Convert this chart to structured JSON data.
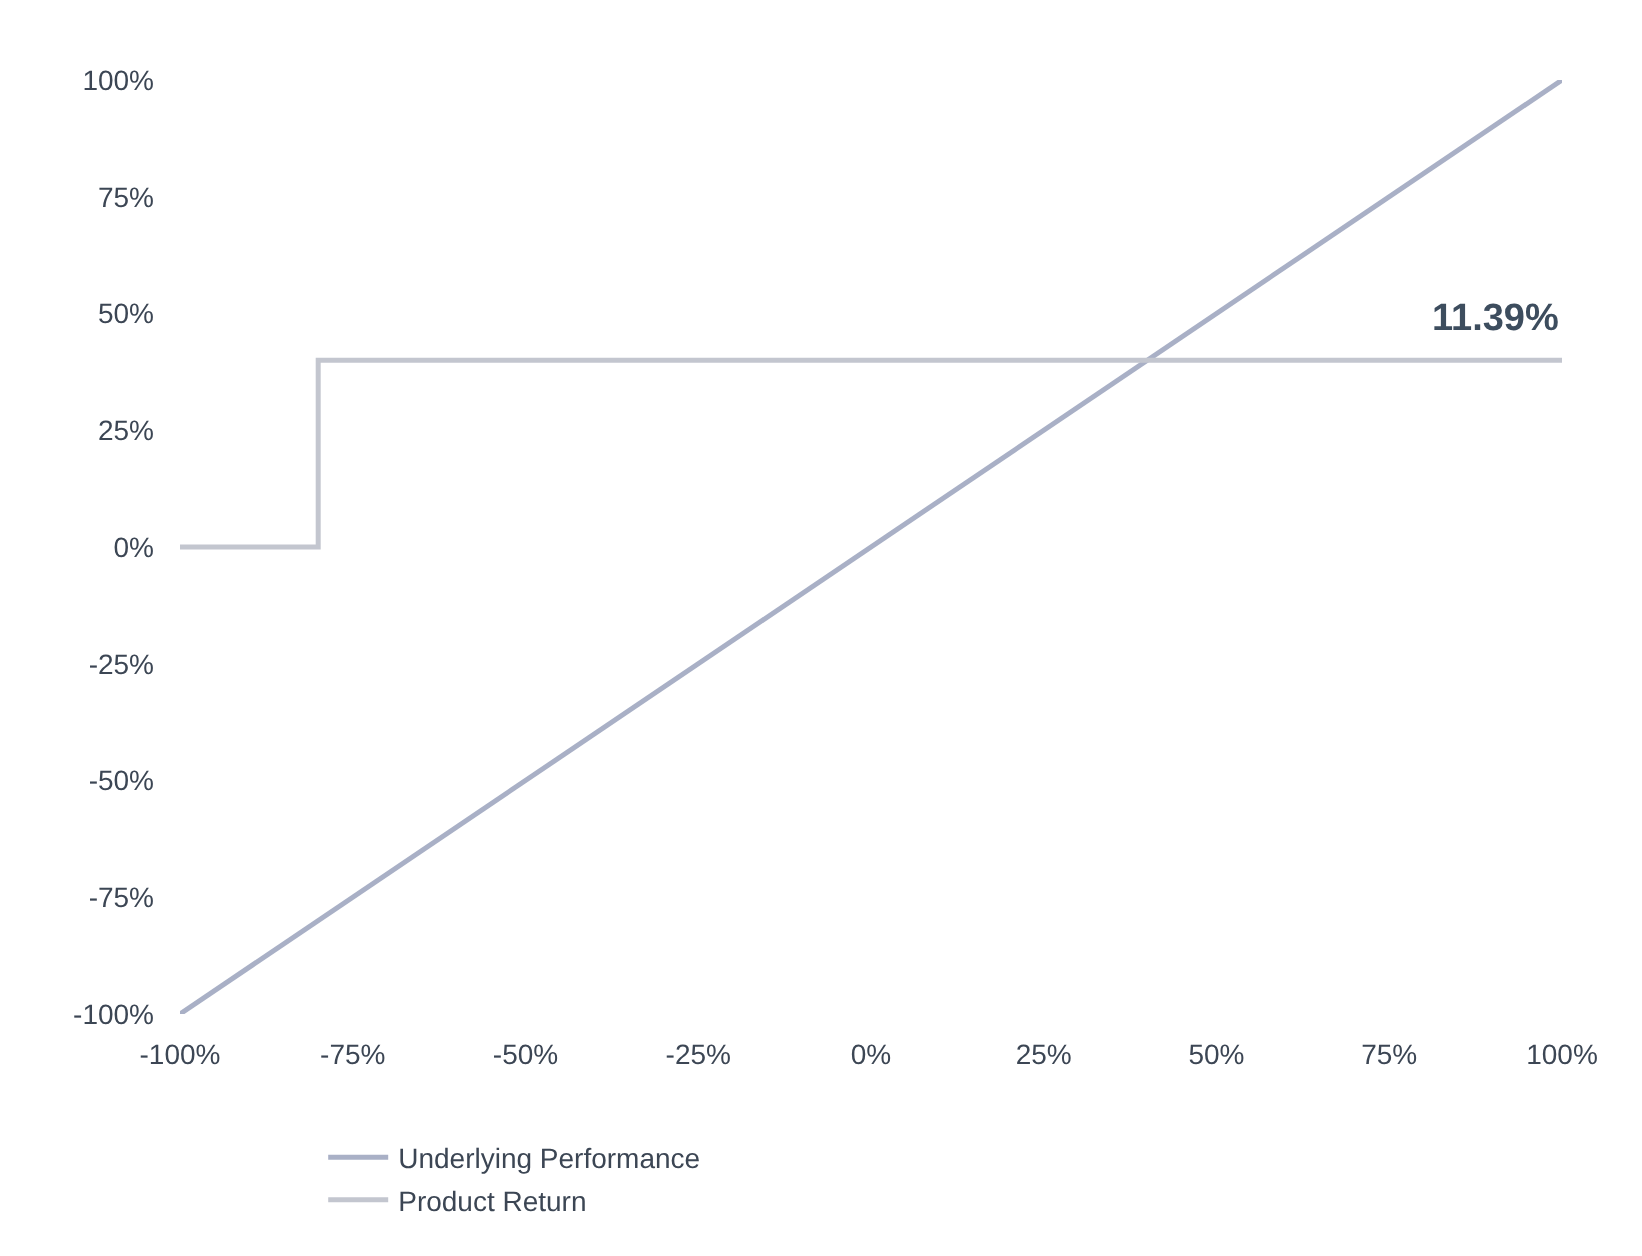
{
  "chart_data": {
    "type": "line",
    "series": [
      {
        "name": "Underlying Performance",
        "color": "#a9b0c6",
        "x": [
          -100,
          100
        ],
        "values": [
          -100,
          100
        ]
      },
      {
        "name": "Product Return",
        "color": "#c3c6cf",
        "x": [
          -100,
          -80,
          -80,
          100
        ],
        "values": [
          0,
          0,
          40,
          40
        ]
      }
    ],
    "annotations": [
      {
        "text": "11.39%",
        "x": 100,
        "y": 40
      }
    ],
    "xlim": [
      -100,
      100
    ],
    "ylim": [
      -100,
      100
    ],
    "xticks": [
      {
        "value": -100,
        "label": "-100%"
      },
      {
        "value": -75,
        "label": "-75%"
      },
      {
        "value": -50,
        "label": "-50%"
      },
      {
        "value": -25,
        "label": "-25%"
      },
      {
        "value": 0,
        "label": "0%"
      },
      {
        "value": 25,
        "label": "25%"
      },
      {
        "value": 50,
        "label": "50%"
      },
      {
        "value": 75,
        "label": "75%"
      },
      {
        "value": 100,
        "label": "100%"
      }
    ],
    "yticks": [
      {
        "value": 100,
        "label": "100%"
      },
      {
        "value": 75,
        "label": "75%"
      },
      {
        "value": 50,
        "label": "50%"
      },
      {
        "value": 25,
        "label": "25%"
      },
      {
        "value": 0,
        "label": "0%"
      },
      {
        "value": -25,
        "label": "-25%"
      },
      {
        "value": -50,
        "label": "-50%"
      },
      {
        "value": -75,
        "label": "-75%"
      },
      {
        "value": -100,
        "label": "-100%"
      }
    ],
    "legend": "bottom",
    "marker": "none",
    "line_style": "solid"
  }
}
